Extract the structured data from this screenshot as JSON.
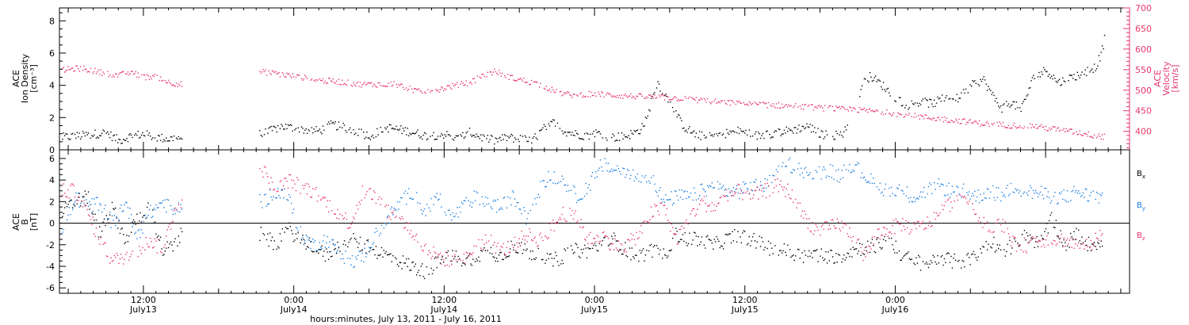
{
  "chart_data": [
    {
      "type": "scatter",
      "panel": "top",
      "ylabel_left": [
        "ACE",
        "Ion Density",
        "[cm⁻³]"
      ],
      "ylabel_right": [
        "ACE",
        "Velocity",
        "[km/s]"
      ],
      "yticks_left": [
        "0",
        "2",
        "4",
        "6",
        "8"
      ],
      "yticks_right": [
        "400",
        "450",
        "500",
        "550",
        "600",
        "650",
        "700"
      ],
      "ylim_left": [
        0,
        8.8
      ],
      "ylim_right": [
        355,
        700
      ],
      "x_unit": "hours since 2011-07-13 00:00",
      "xlim": [
        5.3,
        90.7
      ],
      "gaps": [
        [
          15.1,
          21.2
        ],
        [
          68.2,
          69.1
        ]
      ],
      "series": [
        {
          "name": "Ion Density",
          "axis": "left",
          "color": "#000000",
          "x": [
            5.5,
            7,
            9,
            10,
            11,
            12,
            13,
            14,
            15,
            21.5,
            23,
            24.5,
            26,
            27,
            28.5,
            30,
            31.5,
            33,
            34.5,
            36,
            37,
            38,
            39,
            40,
            41,
            42,
            43,
            44,
            44.9,
            45.5,
            46.5,
            47.5,
            48,
            49.5,
            50.5,
            51.5,
            52.2,
            52.6,
            53,
            53.6,
            54.2,
            54.8,
            55.2,
            56,
            57,
            58,
            59.5,
            61,
            62.5,
            64,
            65,
            66,
            67,
            67.9,
            69.5,
            70,
            71,
            72,
            73,
            74,
            75,
            76,
            77,
            78,
            79,
            79.8,
            80.5,
            81.2,
            82,
            83,
            84,
            85,
            86,
            87,
            88,
            88.4,
            88.7
          ],
          "y": [
            0.8,
            0.9,
            1.1,
            0.6,
            0.9,
            1.0,
            0.8,
            0.7,
            0.8,
            1.0,
            1.5,
            1.3,
            1.2,
            1.6,
            1.3,
            0.9,
            1.4,
            1.2,
            0.9,
            1.0,
            0.7,
            1.1,
            0.8,
            0.6,
            0.8,
            0.7,
            0.6,
            1.4,
            1.8,
            1.2,
            1.0,
            0.9,
            1.1,
            0.8,
            0.9,
            1.2,
            2.0,
            3.5,
            4.2,
            3.4,
            2.8,
            1.8,
            1.4,
            1.0,
            0.8,
            1.0,
            1.2,
            0.9,
            1.1,
            1.3,
            1.5,
            1.0,
            0.9,
            1.1,
            4.3,
            4.6,
            4.0,
            3.2,
            2.8,
            3.0,
            2.9,
            3.3,
            3.2,
            4.0,
            4.4,
            3.3,
            2.6,
            3.0,
            2.5,
            4.5,
            5.0,
            4.2,
            4.5,
            4.8,
            5.2,
            6.0,
            7.0
          ]
        },
        {
          "name": "Velocity",
          "axis": "right",
          "color": "#e8366b",
          "x": [
            5.5,
            7,
            8.5,
            10,
            11,
            12,
            13,
            14,
            15,
            21.5,
            23,
            24.5,
            26,
            27.5,
            29,
            30.5,
            32,
            33,
            34,
            35,
            36.5,
            38,
            39,
            40,
            41.5,
            43,
            44,
            45,
            46,
            48,
            50,
            52,
            54,
            56,
            58,
            60,
            62,
            64,
            66,
            67.5,
            69,
            71,
            73,
            75,
            77,
            79,
            81,
            83,
            85,
            87,
            88,
            88.7
          ],
          "y": [
            550,
            555,
            545,
            537,
            545,
            533,
            535,
            520,
            515,
            545,
            540,
            532,
            525,
            522,
            516,
            515,
            517,
            507,
            497,
            500,
            510,
            520,
            535,
            547,
            530,
            520,
            510,
            495,
            490,
            492,
            488,
            485,
            483,
            478,
            472,
            468,
            465,
            462,
            458,
            455,
            453,
            448,
            440,
            433,
            427,
            420,
            416,
            414,
            405,
            396,
            390,
            388
          ]
        }
      ]
    },
    {
      "type": "scatter",
      "panel": "bottom",
      "ylabel": [
        "ACE",
        "B",
        "[nT]"
      ],
      "yticks": [
        "-6",
        "-4",
        "-2",
        "0",
        "2",
        "4",
        "6"
      ],
      "ylim": [
        -6.5,
        6.8
      ],
      "x_unit": "hours since 2011-07-13 00:00",
      "xlim": [
        5.3,
        90.7
      ],
      "gaps": [
        [
          15.1,
          21.2
        ]
      ],
      "legend": [
        "Bx",
        "By",
        "Bz"
      ],
      "legend_position": "right",
      "series": [
        {
          "name": "Bx",
          "color": "#000000",
          "x": [
            5.5,
            6.5,
            7.5,
            8.5,
            9.5,
            10.5,
            11.5,
            12.5,
            13.5,
            14.5,
            15,
            21.5,
            22.5,
            23.5,
            24.5,
            25.5,
            26.5,
            27.5,
            28.5,
            29.5,
            30.5,
            31.5,
            32.5,
            33.5,
            34.5,
            35.5,
            36.5,
            37.5,
            38.5,
            39.5,
            40.5,
            41.5,
            42.5,
            43.5,
            44.5,
            45.5,
            46.5,
            47.5,
            48.5,
            49.5,
            50.5,
            51.5,
            52.5,
            53.5,
            54.5,
            55.5,
            56.5,
            57.5,
            58.5,
            59.5,
            60.5,
            61.5,
            62.5,
            63.5,
            64.5,
            65.5,
            66.5,
            67.5,
            68.5,
            69.5,
            70.5,
            71.5,
            72.5,
            73.5,
            74.5,
            75.5,
            76.5,
            77.5,
            78.5,
            79.5,
            80.5,
            81.5,
            82.5,
            83.5,
            84.5,
            85.5,
            86.5,
            87.5,
            88.5
          ],
          "y": [
            1.0,
            2.0,
            2.5,
            -1.0,
            1.5,
            -1.5,
            0.5,
            1.5,
            -2.5,
            -2.0,
            -1.0,
            -1.0,
            -2.0,
            -0.5,
            -1.5,
            -2.0,
            -3.0,
            -2.0,
            -1.5,
            -2.0,
            -2.5,
            -3.0,
            -3.5,
            -4.0,
            -4.5,
            -3.5,
            -3.0,
            -3.5,
            -3.0,
            -2.5,
            -3.0,
            -2.0,
            -2.5,
            -3.0,
            -3.5,
            -3.0,
            -2.5,
            -2.5,
            -2.0,
            -1.5,
            -2.5,
            -3.0,
            -2.5,
            -3.0,
            -1.0,
            -1.5,
            -1.5,
            -2.0,
            -1.5,
            -1.0,
            -1.5,
            -2.0,
            -2.5,
            -2.5,
            -3.0,
            -2.8,
            -3.0,
            -3.0,
            -2.5,
            -2.2,
            -2.0,
            -1.5,
            -3.0,
            -3.5,
            -3.8,
            -3.0,
            -3.5,
            -3.5,
            -3.0,
            -1.5,
            -2.5,
            -2.0,
            -1.0,
            -2.0,
            0.5,
            -2.0,
            -1.0,
            -2.0,
            -1.5
          ]
        },
        {
          "name": "By",
          "color": "#1a7fe0",
          "x": [
            5.5,
            6.5,
            7.5,
            8.5,
            9.5,
            10.5,
            11.5,
            12.5,
            13.5,
            14.5,
            15,
            21.5,
            22.5,
            23.5,
            24.5,
            25.5,
            26.5,
            27.5,
            28.5,
            29.5,
            30.5,
            31.5,
            32.5,
            33.5,
            34.5,
            35.5,
            36.5,
            37.5,
            38.5,
            39.5,
            40.5,
            41.5,
            42.5,
            43.5,
            44.5,
            45.5,
            46.5,
            47.5,
            48.5,
            49.5,
            50.5,
            51.5,
            52.5,
            53.5,
            54.5,
            55.5,
            56.5,
            57.5,
            58.5,
            59.5,
            60.5,
            61.5,
            62.5,
            63.5,
            64.5,
            65.5,
            66.5,
            67.5,
            68.5,
            69.5,
            70.5,
            71.5,
            72.5,
            73.5,
            74.5,
            75.5,
            76.5,
            77.5,
            78.5,
            79.5,
            80.5,
            81.5,
            82.5,
            83.5,
            84.5,
            85.5,
            86.5,
            87.5,
            88.5
          ],
          "y": [
            -1.0,
            2.5,
            1.5,
            2.0,
            0.0,
            2.0,
            -1.0,
            1.0,
            2.0,
            1.0,
            2.0,
            2.0,
            3.0,
            2.5,
            -1.0,
            -2.0,
            -1.5,
            -2.5,
            -3.5,
            -3.0,
            -1.0,
            0.5,
            2.0,
            3.0,
            1.0,
            2.5,
            0.5,
            1.5,
            2.5,
            2.0,
            1.5,
            2.5,
            0.5,
            3.0,
            4.5,
            4.0,
            2.5,
            3.5,
            5.5,
            5.0,
            5.0,
            4.0,
            4.5,
            2.0,
            2.5,
            2.5,
            3.0,
            3.5,
            3.0,
            3.0,
            3.5,
            3.5,
            4.5,
            5.5,
            5.0,
            4.5,
            5.0,
            4.5,
            5.5,
            4.5,
            3.5,
            3.0,
            3.0,
            2.5,
            3.0,
            3.5,
            3.0,
            3.0,
            2.5,
            3.0,
            2.5,
            3.5,
            3.0,
            2.8,
            2.5,
            2.5,
            3.0,
            2.5,
            2.5
          ]
        },
        {
          "name": "Bz",
          "color": "#e8366b",
          "x": [
            5.5,
            6.5,
            7.5,
            8.5,
            9.5,
            10.5,
            11.5,
            12.5,
            13.5,
            14.5,
            15,
            21.5,
            22.5,
            23.5,
            24.5,
            25.5,
            26.5,
            27.5,
            28.5,
            29.5,
            30.5,
            31.5,
            32.5,
            33.5,
            34.5,
            35.5,
            36.5,
            37.5,
            38.5,
            39.5,
            40.5,
            41.5,
            42.5,
            43.5,
            44.5,
            45.5,
            46.5,
            47.5,
            48.5,
            49.5,
            50.5,
            51.5,
            52.5,
            53.5,
            54.5,
            55.5,
            56.5,
            57.5,
            58.5,
            59.5,
            60.5,
            61.5,
            62.5,
            63.5,
            64.5,
            65.5,
            66.5,
            67.5,
            68.5,
            69.5,
            70.5,
            71.5,
            72.5,
            73.5,
            74.5,
            75.5,
            76.5,
            77.5,
            78.5,
            79.5,
            80.5,
            81.5,
            82.5,
            83.5,
            84.5,
            85.5,
            86.5,
            87.5,
            88.5
          ],
          "y": [
            3.0,
            3.0,
            1.0,
            -1.5,
            -3.5,
            -3.0,
            -2.5,
            -1.5,
            -2.5,
            1.5,
            2.0,
            5.0,
            3.0,
            4.0,
            3.5,
            3.0,
            2.0,
            1.0,
            0.0,
            3.0,
            2.5,
            1.0,
            0.5,
            -1.0,
            -2.5,
            -3.0,
            -3.5,
            -3.5,
            -2.0,
            -1.5,
            -2.5,
            -2.0,
            -1.0,
            -1.5,
            -0.5,
            1.0,
            0.5,
            -1.5,
            -1.0,
            -2.0,
            -2.0,
            -1.0,
            1.0,
            1.5,
            -1.5,
            0.5,
            2.0,
            1.5,
            2.5,
            3.0,
            2.5,
            3.0,
            3.5,
            3.0,
            1.0,
            -0.5,
            -0.5,
            0.0,
            -1.0,
            -3.0,
            -1.0,
            -0.5,
            0.0,
            -0.5,
            0.0,
            1.0,
            2.0,
            2.5,
            1.0,
            -0.5,
            0.0,
            -2.0,
            -2.0,
            -1.5,
            -1.5,
            -1.5,
            -2.0,
            -2.0,
            -1.0
          ]
        }
      ]
    }
  ],
  "xaxis": {
    "ticks": [
      {
        "hour": 12,
        "time": "12:00",
        "day": "July13"
      },
      {
        "hour": 24,
        "time": "0:00",
        "day": "July14"
      },
      {
        "hour": 36,
        "time": "12:00",
        "day": "July14"
      },
      {
        "hour": 48,
        "time": "0:00",
        "day": "July15"
      },
      {
        "hour": 60,
        "time": "12:00",
        "day": "July15"
      },
      {
        "hour": 72,
        "time": "0:00",
        "day": "July16"
      }
    ],
    "xlabel": "hours:minutes, July 13, 2011 - July 16, 2011"
  },
  "colors": {
    "black": "#000000",
    "blue": "#1a7fe0",
    "pink": "#e8366b"
  }
}
